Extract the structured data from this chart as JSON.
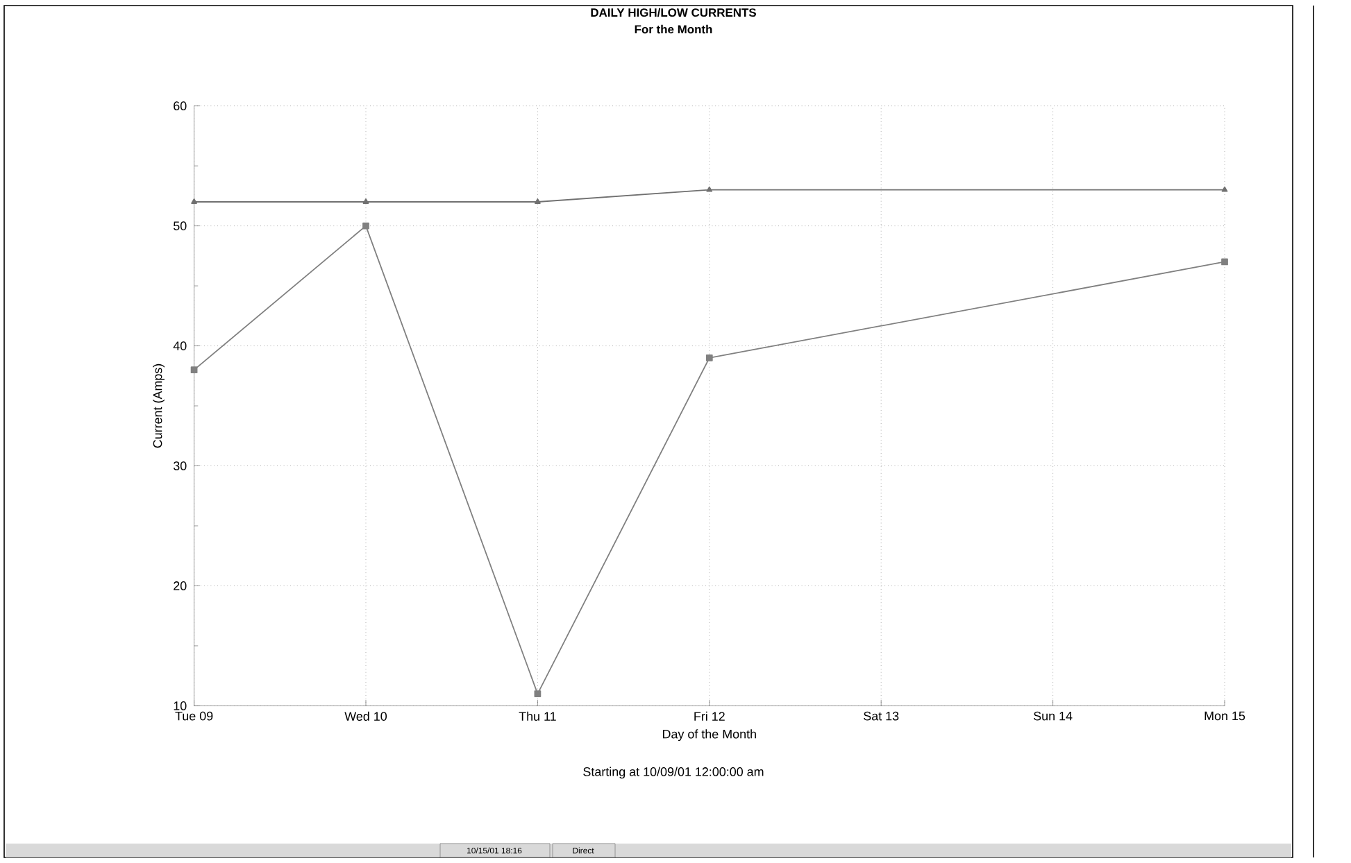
{
  "chart_data": {
    "type": "line",
    "title": "DAILY HIGH/LOW CURRENTS",
    "subtitle": "For the Month",
    "xlabel": "Day of the Month",
    "ylabel": "Current (Amps)",
    "categories": [
      "Tue 09",
      "Wed 10",
      "Thu 11",
      "Fri 12",
      "Sat 13",
      "Sun 14",
      "Mon 15"
    ],
    "series": [
      {
        "color": "#707070",
        "marker": "triangle",
        "values": [
          52,
          52,
          52,
          53,
          null,
          null,
          53
        ]
      },
      {
        "color": "#808080",
        "marker": "square",
        "values": [
          38,
          50,
          11,
          39,
          null,
          null,
          47
        ]
      }
    ],
    "ylim": [
      10,
      60
    ],
    "yticks": [
      10,
      20,
      30,
      40,
      50,
      60
    ],
    "grid": true,
    "line_style": "solid",
    "annotations": [
      "Starting at 10/09/01 12:00:00 am",
      "10/15/01 18:16",
      "Direct"
    ]
  }
}
